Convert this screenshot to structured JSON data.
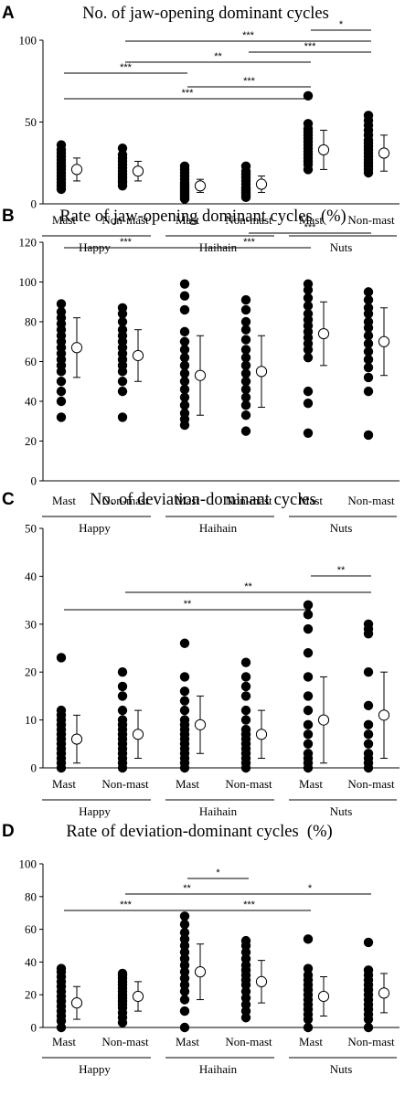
{
  "chart_data": [
    {
      "type": "scatter",
      "panel": "A",
      "title": "No. of jaw-opening dominant cycles",
      "ylim": [
        0,
        100
      ],
      "yticks": [
        "0",
        "50",
        "100"
      ],
      "ytick_values": [
        0,
        50,
        100
      ],
      "categories": [
        "Mast",
        "Non-mast",
        "Mast",
        "Non-mast",
        "Mast",
        "Non-mast"
      ],
      "groups": [
        "Happy",
        "Haihain",
        "Nuts"
      ],
      "points": [
        [
          9,
          11,
          13,
          15,
          17,
          19,
          21,
          23,
          25,
          27,
          29,
          31,
          33,
          36
        ],
        [
          11,
          13,
          14,
          16,
          18,
          20,
          22,
          24,
          26,
          28,
          30,
          34
        ],
        [
          3,
          4,
          5,
          6,
          7,
          8,
          9,
          10,
          11,
          12,
          13,
          15,
          17,
          19,
          21,
          23
        ],
        [
          4,
          5,
          6,
          7,
          8,
          9,
          10,
          12,
          14,
          16,
          18,
          20,
          23
        ],
        [
          21,
          24,
          26,
          28,
          30,
          32,
          34,
          36,
          38,
          40,
          42,
          44,
          46,
          49,
          66
        ],
        [
          19,
          21,
          23,
          25,
          27,
          29,
          31,
          33,
          35,
          37,
          39,
          42,
          45,
          48,
          51,
          54
        ]
      ],
      "mean": [
        21,
        20,
        11,
        12,
        33,
        31
      ],
      "sd": [
        7,
        6,
        4,
        5,
        12,
        11
      ],
      "brackets": [
        {
          "from": 0,
          "to": 4,
          "label": "***"
        },
        {
          "from": 2,
          "to": 4,
          "label": "***"
        },
        {
          "from": 0,
          "to": 2,
          "label": "***"
        },
        {
          "from": 1,
          "to": 4,
          "label": "**"
        },
        {
          "from": 3,
          "to": 5,
          "label": "***"
        },
        {
          "from": 1,
          "to": 5,
          "label": "***"
        },
        {
          "from": 4,
          "to": 5,
          "label": "*"
        }
      ]
    },
    {
      "type": "scatter",
      "panel": "B",
      "title": "Rate of jaw-opening dominant cycles  (%)",
      "ylim": [
        0,
        120
      ],
      "yticks": [
        "0",
        "20",
        "40",
        "60",
        "80",
        "100",
        "120"
      ],
      "ytick_values": [
        0,
        20,
        40,
        60,
        80,
        100,
        120
      ],
      "categories": [
        "Mast",
        "Non-mast",
        "Mast",
        "Non-mast",
        "Mast",
        "Non-mast"
      ],
      "groups": [
        "Happy",
        "Haihain",
        "Nuts"
      ],
      "points": [
        [
          32,
          40,
          45,
          50,
          55,
          58,
          61,
          64,
          67,
          70,
          73,
          76,
          79,
          82,
          85,
          89
        ],
        [
          32,
          45,
          50,
          55,
          58,
          61,
          64,
          67,
          70,
          73,
          76,
          80,
          84,
          87
        ],
        [
          28,
          31,
          34,
          38,
          42,
          46,
          50,
          54,
          58,
          62,
          66,
          70,
          75,
          86,
          93,
          99
        ],
        [
          25,
          33,
          38,
          42,
          46,
          50,
          54,
          58,
          62,
          66,
          71,
          76,
          80,
          86,
          91
        ],
        [
          24,
          39,
          45,
          62,
          66,
          69,
          72,
          75,
          78,
          81,
          84,
          88,
          92,
          96,
          99
        ],
        [
          23,
          45,
          52,
          57,
          61,
          65,
          69,
          73,
          77,
          80,
          84,
          87,
          91,
          95
        ]
      ],
      "mean": [
        67,
        63,
        53,
        55,
        74,
        70
      ],
      "sd": [
        15,
        13,
        20,
        18,
        16,
        17
      ],
      "brackets": [
        {
          "from": 0,
          "to": 2,
          "label": "***"
        },
        {
          "from": 2,
          "to": 4,
          "label": "***"
        },
        {
          "from": 3,
          "to": 5,
          "label": "***"
        }
      ]
    },
    {
      "type": "scatter",
      "panel": "C",
      "title": "No. of deviation-dominant cycles",
      "ylim": [
        0,
        50
      ],
      "yticks": [
        "0",
        "10",
        "20",
        "30",
        "40",
        "50"
      ],
      "ytick_values": [
        0,
        10,
        20,
        30,
        40,
        50
      ],
      "categories": [
        "Mast",
        "Non-mast",
        "Mast",
        "Non-mast",
        "Mast",
        "Non-mast"
      ],
      "groups": [
        "Happy",
        "Haihain",
        "Nuts"
      ],
      "points": [
        [
          0,
          1,
          2,
          3,
          4,
          5,
          6,
          7,
          8,
          9,
          10,
          11,
          12,
          23
        ],
        [
          0,
          1,
          2,
          3,
          4,
          5,
          6,
          7,
          8,
          9,
          10,
          12,
          15,
          17,
          20
        ],
        [
          0,
          1,
          2,
          3,
          4,
          5,
          6,
          7,
          8,
          9,
          10,
          12,
          14,
          16,
          19,
          26
        ],
        [
          0,
          1,
          2,
          3,
          4,
          5,
          6,
          7,
          8,
          10,
          12,
          15,
          17,
          19,
          22
        ],
        [
          0,
          1,
          2,
          3,
          5,
          7,
          9,
          12,
          15,
          19,
          24,
          29,
          32,
          34
        ],
        [
          0,
          1,
          2,
          3,
          5,
          7,
          9,
          13,
          20,
          28,
          29,
          30
        ]
      ],
      "mean": [
        6,
        7,
        9,
        7,
        10,
        11
      ],
      "sd": [
        5,
        5,
        6,
        5,
        9,
        9
      ],
      "brackets": [
        {
          "from": 0,
          "to": 4,
          "label": "**"
        },
        {
          "from": 1,
          "to": 5,
          "label": "**"
        },
        {
          "from": 4,
          "to": 5,
          "label": "**"
        }
      ]
    },
    {
      "type": "scatter",
      "panel": "D",
      "title": "Rate of deviation-dominant cycles  (%)",
      "ylim": [
        0,
        100
      ],
      "yticks": [
        "0",
        "20",
        "40",
        "60",
        "80",
        "100"
      ],
      "ytick_values": [
        0,
        20,
        40,
        60,
        80,
        100
      ],
      "categories": [
        "Mast",
        "Non-mast",
        "Mast",
        "Non-mast",
        "Mast",
        "Non-mast"
      ],
      "groups": [
        "Happy",
        "Haihain",
        "Nuts"
      ],
      "points": [
        [
          0,
          4,
          7,
          10,
          13,
          16,
          19,
          22,
          25,
          28,
          31,
          34,
          36
        ],
        [
          3,
          6,
          9,
          12,
          14,
          16,
          18,
          20,
          22,
          24,
          26,
          28,
          30,
          32,
          33
        ],
        [
          0,
          10,
          17,
          22,
          26,
          30,
          34,
          38,
          42,
          46,
          50,
          54,
          58,
          63,
          68
        ],
        [
          6,
          10,
          14,
          18,
          22,
          26,
          29,
          32,
          35,
          38,
          42,
          46,
          50,
          53
        ],
        [
          0,
          5,
          8,
          11,
          14,
          17,
          20,
          23,
          26,
          29,
          32,
          36,
          54
        ],
        [
          0,
          5,
          8,
          11,
          14,
          17,
          20,
          23,
          26,
          29,
          32,
          35,
          52
        ]
      ],
      "mean": [
        15,
        19,
        34,
        28,
        19,
        21
      ],
      "sd": [
        10,
        9,
        17,
        13,
        12,
        12
      ],
      "brackets": [
        {
          "from": 0,
          "to": 2,
          "label": "***"
        },
        {
          "from": 2,
          "to": 4,
          "label": "***"
        },
        {
          "from": 1,
          "to": 3,
          "label": "**"
        },
        {
          "from": 3,
          "to": 5,
          "label": "*"
        },
        {
          "from": 2,
          "to": 3,
          "label": "*"
        }
      ]
    }
  ]
}
